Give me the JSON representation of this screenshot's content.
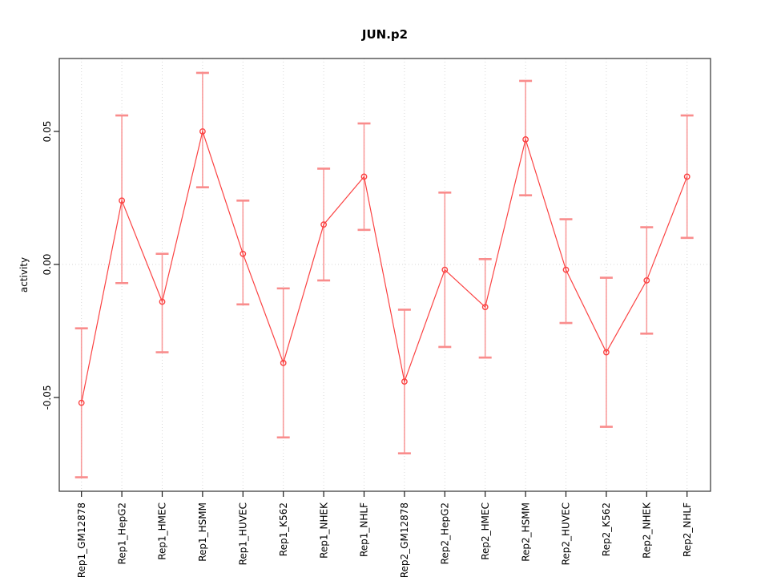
{
  "figure": {
    "title": "JUN.p2",
    "ylabel": "activity"
  },
  "chart_data": {
    "type": "line",
    "title": "JUN.p2",
    "xlabel": "",
    "ylabel": "activity",
    "marker": "open-circle",
    "legend": "none",
    "grid": "vertical dotted gridline at each category; horizontal dotted line at y=0",
    "categories": [
      "Rep1_GM12878",
      "Rep1_HepG2",
      "Rep1_HMEC",
      "Rep1_HSMM",
      "Rep1_HUVEC",
      "Rep1_K562",
      "Rep1_NHEK",
      "Rep1_NHLF",
      "Rep2_GM12878",
      "Rep2_HepG2",
      "Rep2_HMEC",
      "Rep2_HSMM",
      "Rep2_HUVEC",
      "Rep2_K562",
      "Rep2_NHEK",
      "Rep2_NHLF"
    ],
    "series": [
      {
        "name": "activity",
        "values": [
          -0.052,
          0.024,
          -0.014,
          0.05,
          0.004,
          -0.037,
          0.015,
          0.033,
          -0.044,
          -0.002,
          -0.016,
          0.047,
          -0.002,
          -0.033,
          -0.006,
          0.033
        ],
        "error_low": [
          -0.08,
          -0.007,
          -0.033,
          0.029,
          -0.015,
          -0.065,
          -0.006,
          0.013,
          -0.071,
          -0.031,
          -0.035,
          0.026,
          -0.022,
          -0.061,
          -0.026,
          0.01
        ],
        "error_high": [
          -0.024,
          0.056,
          0.004,
          0.072,
          0.024,
          -0.009,
          0.036,
          0.053,
          -0.017,
          0.027,
          0.002,
          0.069,
          0.017,
          -0.005,
          0.014,
          0.056
        ]
      }
    ],
    "yticks": [
      0.05,
      0.0,
      -0.05
    ],
    "ytick_labels": [
      "0.05",
      "0.00",
      "-0.05"
    ],
    "ylim": [
      -0.085,
      0.078
    ],
    "colors": {
      "point_line": "#fb4343",
      "error_bar": "#f98c8c",
      "grid": "#d7d7d7",
      "frame": "#404040",
      "tick": "#1a1a1a",
      "background": "#ffffff"
    }
  }
}
